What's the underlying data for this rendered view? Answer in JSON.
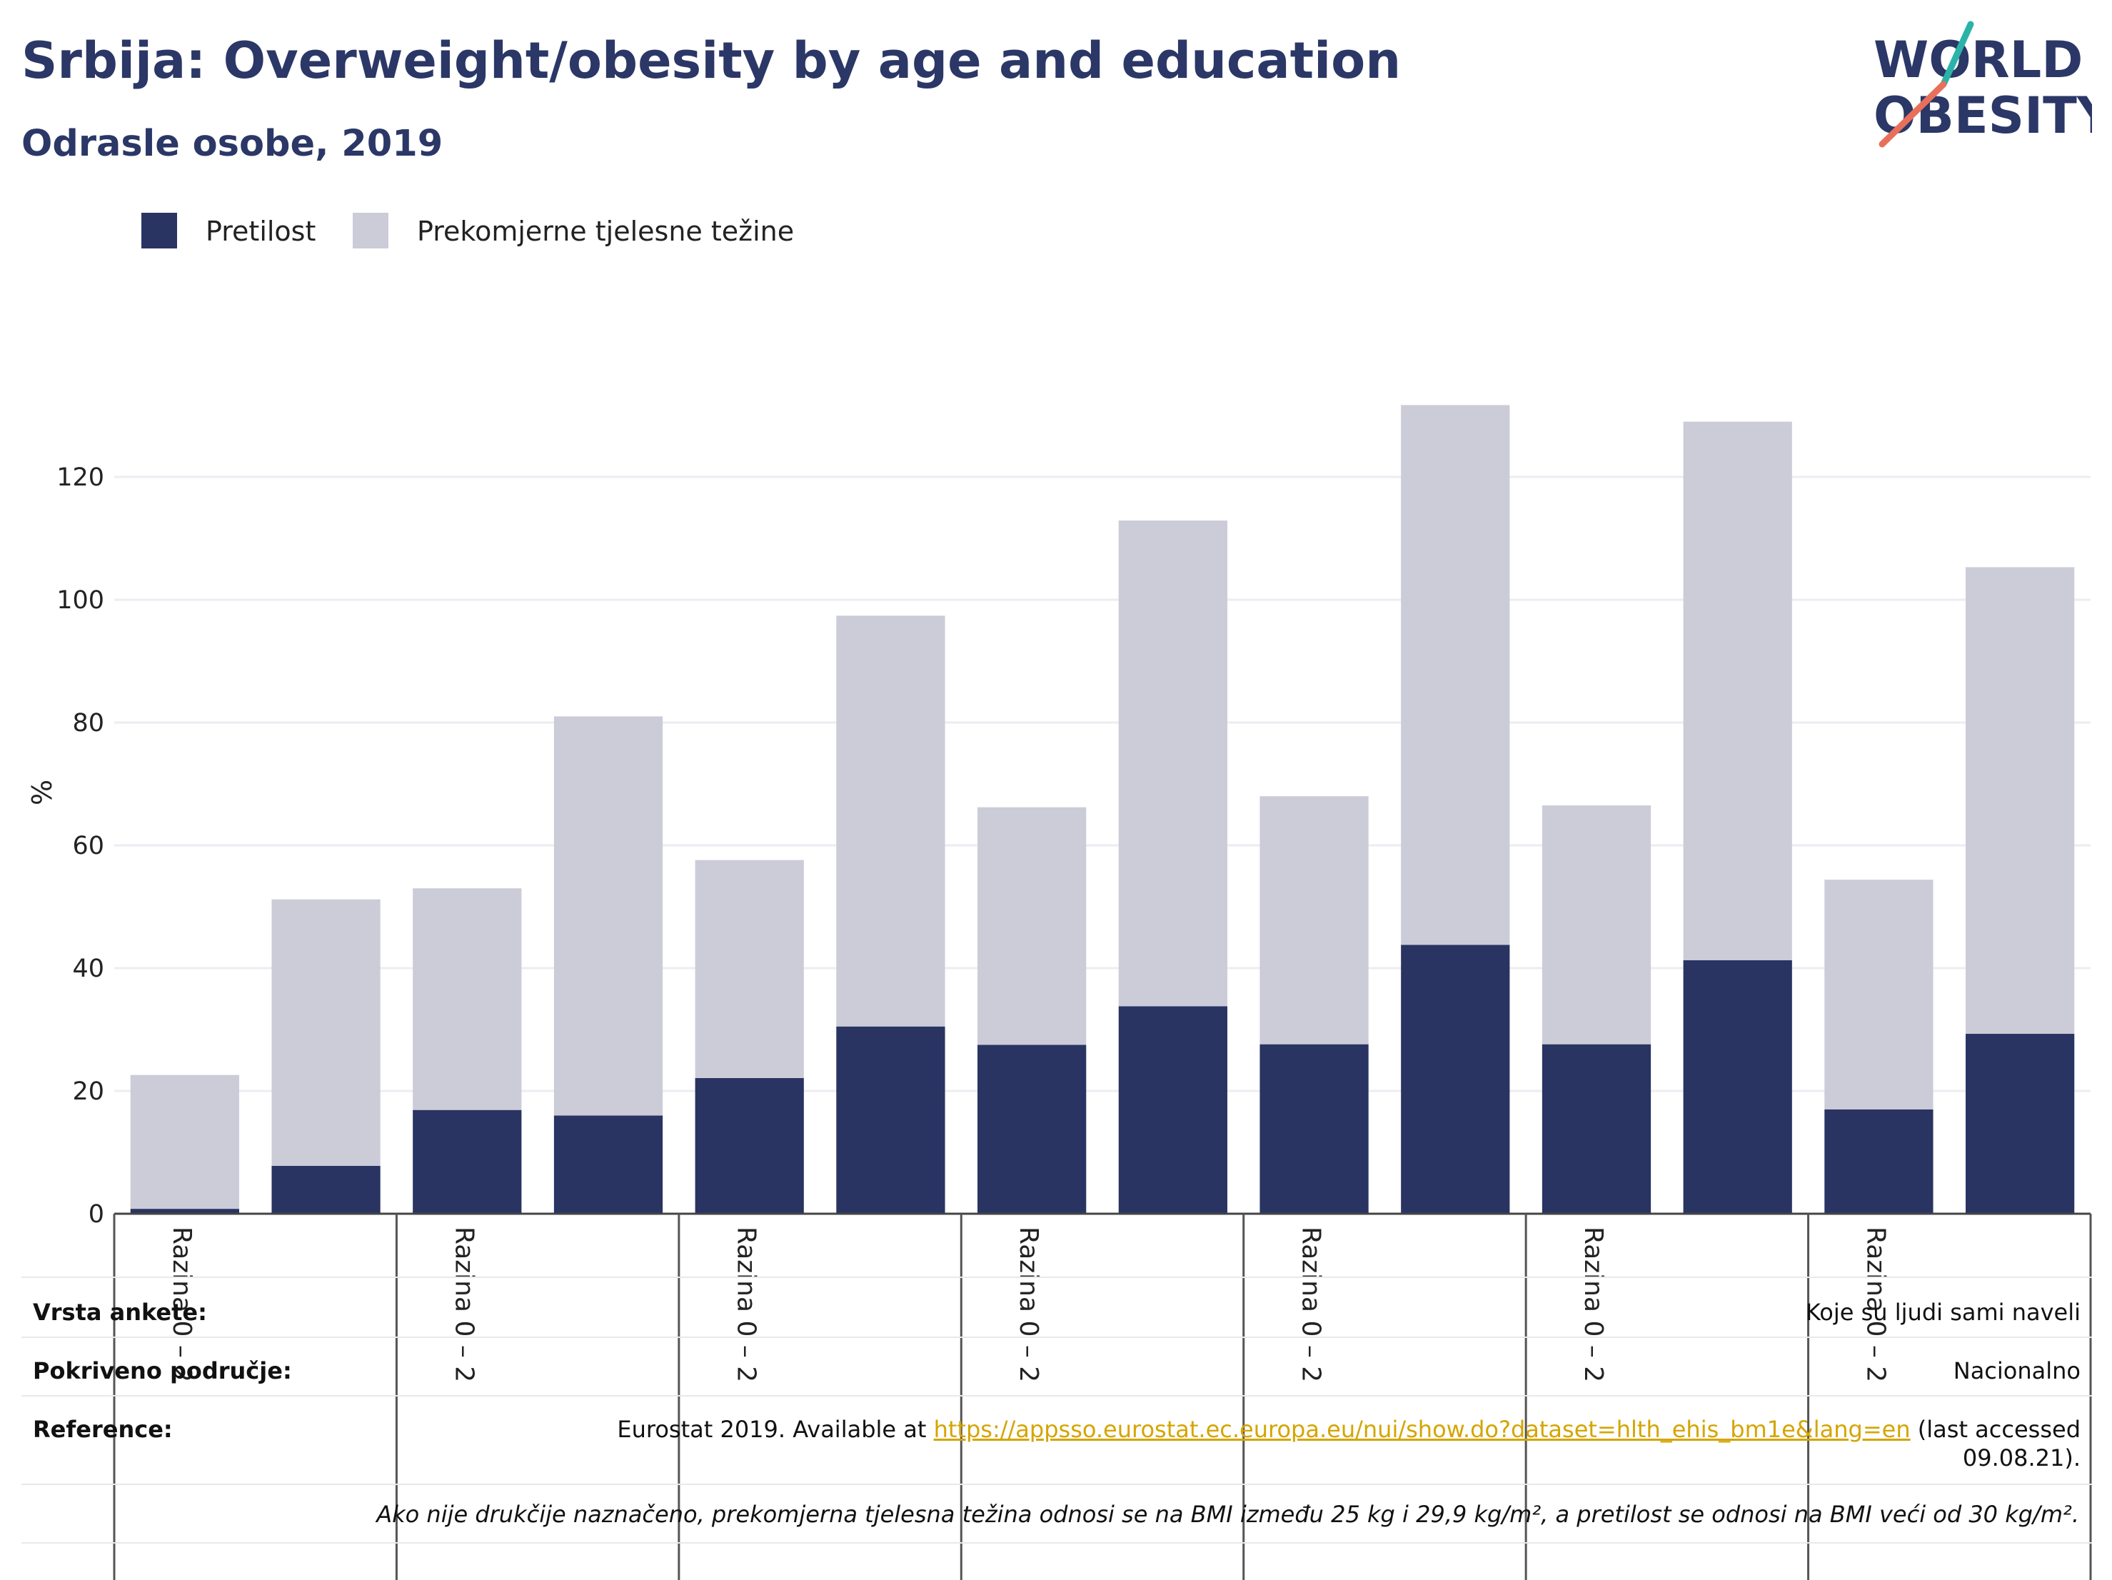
{
  "header": {
    "title": "Srbija: Overweight/obesity by age and education",
    "subtitle": "Odrasle osobe, 2019"
  },
  "logo": {
    "line1": "WORLD",
    "line2": "OBESITY",
    "accent_teal": "#2bb3a8",
    "accent_coral": "#e8705a"
  },
  "colors": {
    "obesity": "#293462",
    "overweight": "#cbccd8",
    "text_dark": "#2b3766"
  },
  "chart_data": {
    "type": "bar",
    "stacked": true,
    "ylabel": "%",
    "ylim": [
      0,
      135
    ],
    "yticks": [
      0,
      20,
      40,
      60,
      80,
      100,
      120
    ],
    "legend_position": "top-left",
    "grid": true,
    "categories": [
      "Razina 0 – 2",
      "",
      "Razina 0 – 2",
      "",
      "Razina 0 – 2",
      "",
      "Razina 0 – 2",
      "",
      "Razina 0 – 2",
      "",
      "Razina 0 – 2",
      "",
      "Razina 0 – 2",
      ""
    ],
    "series": [
      {
        "name": "Pretilost",
        "color": "#293462",
        "values": [
          0.8,
          7.8,
          16.9,
          16.0,
          22.1,
          30.5,
          27.5,
          33.8,
          27.6,
          43.8,
          27.6,
          41.3,
          17.0,
          29.3
        ]
      },
      {
        "name": "Prekomjerne tjelesne težine",
        "color": "#cbccd8",
        "values": [
          21.8,
          43.4,
          36.1,
          65.0,
          35.5,
          66.9,
          38.7,
          79.1,
          40.4,
          87.9,
          38.9,
          87.7,
          37.4,
          76.0
        ]
      }
    ]
  },
  "footer": {
    "survey_label": "Vrsta ankete:",
    "survey_value": "Koje su ljudi sami naveli",
    "coverage_label": "Pokriveno područje:",
    "coverage_value": "Nacionalno",
    "reference_label": "Reference:",
    "reference_prefix": "Eurostat 2019. Available at ",
    "reference_link": "https://appsso.eurostat.ec.europa.eu/nui/show.do?dataset=hlth_ehis_bm1e&lang=en",
    "reference_suffix": " (last accessed",
    "reference_date": "09.08.21).",
    "note": "Ako nije drukčije naznačeno, prekomjerna tjelesna težina odnosi se na BMI između 25 kg i 29,9 kg/m², a pretilost se odnosi na BMI veći od 30 kg/m²."
  }
}
